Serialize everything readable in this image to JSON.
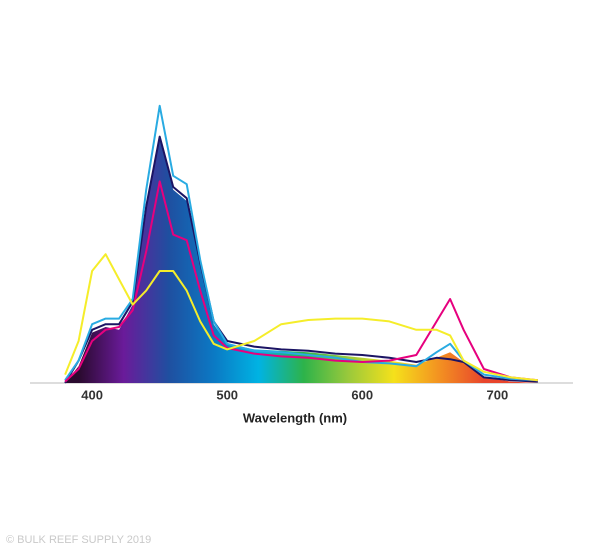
{
  "chart_data": {
    "type": "line",
    "x_label": "Wavelength (nm)",
    "watermark": "© BULK REEF SUPPLY 2019",
    "xlim": [
      354,
      756
    ],
    "ylim": [
      0,
      100
    ],
    "xticks": [
      400,
      500,
      600,
      700
    ],
    "x": [
      380,
      390,
      400,
      410,
      420,
      430,
      440,
      450,
      460,
      470,
      480,
      490,
      500,
      520,
      540,
      560,
      580,
      600,
      620,
      640,
      655,
      665,
      675,
      690,
      710,
      730
    ],
    "series": [
      {
        "fill": true,
        "gradient": [
          "#2a0a2e",
          "#6a1b9a",
          "#1f4fa0",
          "#0b79c4",
          "#00b3e3",
          "#2db34a",
          "#9bc93b",
          "#f5e11b",
          "#f39221",
          "#e8452c"
        ],
        "values": [
          0,
          6,
          18,
          20,
          19,
          28,
          62,
          87,
          69,
          65,
          42,
          21,
          14,
          12,
          11.5,
          11,
          10,
          9,
          8,
          6.5,
          9,
          11,
          7.5,
          2,
          0.5,
          0
        ]
      },
      {
        "color": "#1b1464",
        "values": [
          0,
          8,
          19,
          21,
          21,
          29,
          63,
          88,
          70,
          66,
          43,
          22,
          15,
          13,
          12,
          11.5,
          10.5,
          10,
          9,
          7.5,
          9,
          8.5,
          7.5,
          2,
          1,
          0.5
        ]
      },
      {
        "color": "#29abe2",
        "values": [
          1,
          8,
          21,
          23,
          23,
          30,
          69,
          99,
          74,
          71,
          44,
          22,
          14,
          11.5,
          11,
          10,
          9,
          7.5,
          7,
          6,
          11,
          14,
          8,
          3,
          1.5,
          1
        ]
      },
      {
        "color": "#e6007e",
        "values": [
          0.5,
          5,
          15,
          19,
          20,
          26,
          47,
          72,
          53,
          51,
          33,
          17,
          12.5,
          10.5,
          9.5,
          9,
          8,
          7.5,
          8,
          10,
          22,
          30,
          19,
          5,
          2,
          1
        ]
      },
      {
        "color": "#f5ed2a",
        "values": [
          3,
          15,
          40,
          46,
          37,
          28,
          33,
          40,
          40,
          33,
          22,
          14,
          12,
          15,
          21,
          22.5,
          23,
          23,
          22,
          19,
          19,
          17,
          8,
          4,
          2,
          1
        ]
      }
    ]
  }
}
